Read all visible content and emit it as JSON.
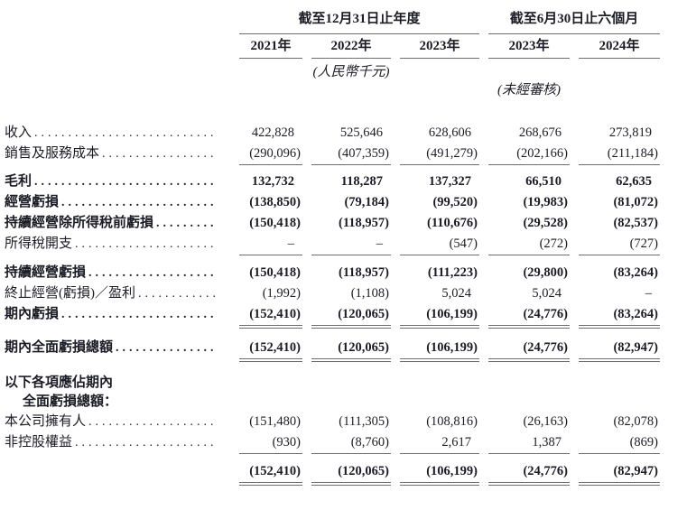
{
  "header": {
    "group1": {
      "title": "截至12月31日止年度",
      "years": [
        "2021年",
        "2022年",
        "2023年"
      ]
    },
    "group2": {
      "title": "截至6月30日止六個月",
      "years": [
        "2023年",
        "2024年"
      ]
    },
    "currency_note": "(人民幣千元)",
    "audit_note": "(未經審核)"
  },
  "rows": [
    {
      "type": "data",
      "label": "收入",
      "bold": false,
      "rule": "none",
      "values": [
        "422,828",
        "525,646",
        "628,606",
        "268,676",
        "273,819"
      ]
    },
    {
      "type": "data",
      "label": "銷售及服務成本",
      "bold": false,
      "rule": "single",
      "values": [
        "(290,096)",
        "(407,359)",
        "(491,279)",
        "(202,166)",
        "(211,184)"
      ]
    },
    {
      "type": "spacer",
      "h": 7
    },
    {
      "type": "data",
      "label": "毛利",
      "bold": true,
      "rule": "none",
      "values": [
        "132,732",
        "118,287",
        "137,327",
        "66,510",
        "62,635"
      ]
    },
    {
      "type": "data",
      "label": "經營虧損",
      "bold": true,
      "rule": "none",
      "values": [
        "(138,850)",
        "(79,184)",
        "(99,520)",
        "(19,983)",
        "(81,072)"
      ]
    },
    {
      "type": "data",
      "label": "持續經營除所得稅前虧損",
      "bold": true,
      "rule": "none",
      "values": [
        "(150,418)",
        "(118,957)",
        "(110,676)",
        "(29,528)",
        "(82,537)"
      ]
    },
    {
      "type": "data",
      "label": "所得稅開支",
      "bold": false,
      "rule": "single",
      "values": [
        "–",
        "–",
        "(547)",
        "(272)",
        "(727)"
      ]
    },
    {
      "type": "spacer",
      "h": 8
    },
    {
      "type": "data",
      "label": "持續經營虧損",
      "bold": true,
      "rule": "none",
      "values": [
        "(150,418)",
        "(118,957)",
        "(111,223)",
        "(29,800)",
        "(83,264)"
      ]
    },
    {
      "type": "data",
      "label": "終止經營(虧損)／盈利",
      "bold": false,
      "rule": "none",
      "values": [
        "(1,992)",
        "(1,108)",
        "5,024",
        "5,024",
        "–"
      ]
    },
    {
      "type": "data",
      "label": "期內虧損",
      "bold": true,
      "rule": "double",
      "values": [
        "(152,410)",
        "(120,065)",
        "(106,199)",
        "(24,776)",
        "(83,264)"
      ]
    },
    {
      "type": "spacer",
      "h": 10
    },
    {
      "type": "data",
      "label": "期內全面虧損總額",
      "bold": true,
      "rule": "double",
      "values": [
        "(152,410)",
        "(120,065)",
        "(106,199)",
        "(24,776)",
        "(82,947)"
      ]
    },
    {
      "type": "spacer",
      "h": 13
    },
    {
      "type": "label",
      "label": "以下各項應佔期內",
      "bold": true,
      "indent": false
    },
    {
      "type": "label",
      "label": "全面虧損總額：",
      "bold": true,
      "indent": true
    },
    {
      "type": "data",
      "label": "本公司擁有人",
      "bold": false,
      "rule": "none",
      "values": [
        "(151,480)",
        "(111,305)",
        "(108,816)",
        "(26,163)",
        "(82,078)"
      ]
    },
    {
      "type": "data",
      "label": "非控股權益",
      "bold": false,
      "rule": "single",
      "values": [
        "(930)",
        "(8,760)",
        "2,617",
        "1,387",
        "(869)"
      ]
    },
    {
      "type": "spacer",
      "h": 8
    },
    {
      "type": "data",
      "label": "",
      "bold": true,
      "rule": "double",
      "values": [
        "(152,410)",
        "(120,065)",
        "(106,199)",
        "(24,776)",
        "(82,947)"
      ]
    }
  ]
}
